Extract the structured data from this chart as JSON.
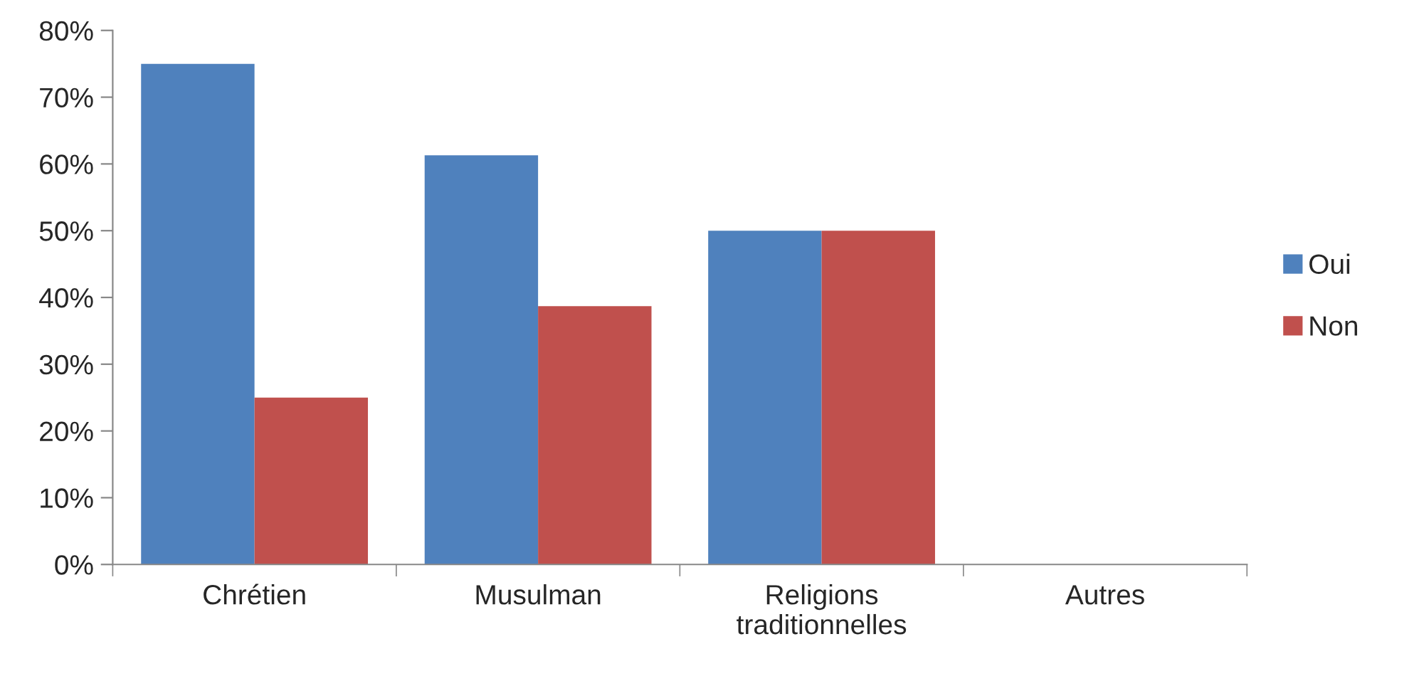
{
  "chart_data": {
    "type": "bar",
    "categories": [
      "Chrétien",
      "Musulman",
      "Religions\ntraditionnelles",
      "Autres"
    ],
    "series": [
      {
        "name": "Oui",
        "color": "#4f81bd",
        "values": [
          75,
          61.3,
          50,
          0
        ]
      },
      {
        "name": "Non",
        "color": "#c0504d",
        "values": [
          25,
          38.7,
          50,
          0
        ]
      }
    ],
    "ylim": [
      0,
      80
    ],
    "yticks": [
      {
        "value": 0,
        "label": "0%"
      },
      {
        "value": 10,
        "label": "10%"
      },
      {
        "value": 20,
        "label": "20%"
      },
      {
        "value": 30,
        "label": "30%"
      },
      {
        "value": 40,
        "label": "40%"
      },
      {
        "value": 50,
        "label": "50%"
      },
      {
        "value": 60,
        "label": "60%"
      },
      {
        "value": 70,
        "label": "70%"
      },
      {
        "value": 80,
        "label": "80%"
      }
    ],
    "grid": false,
    "legend": "right"
  }
}
